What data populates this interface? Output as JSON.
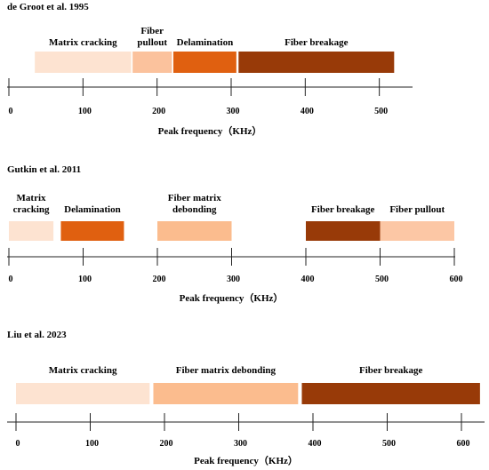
{
  "chart_data": [
    {
      "type": "bar",
      "title": "de Groot et al.  1995",
      "xlabel": "Peak frequency（KHz）",
      "ticks": [
        0,
        100,
        200,
        300,
        400,
        500
      ],
      "xlim": [
        0,
        550
      ],
      "bands": [
        {
          "name": "Matrix cracking",
          "label_lines": [
            "Matrix cracking"
          ],
          "start": 35,
          "end": 165,
          "color": "#fde3d1"
        },
        {
          "name": "Fiber pullout",
          "label_lines": [
            "Fiber",
            "pullout"
          ],
          "start": 167,
          "end": 220,
          "color": "#fbc29d"
        },
        {
          "name": "Delamination",
          "label_lines": [
            "Delamination"
          ],
          "start": 222,
          "end": 307,
          "color": "#e06010"
        },
        {
          "name": "Fiber breakage",
          "label_lines": [
            "Fiber breakage"
          ],
          "start": 310,
          "end": 520,
          "color": "#983a08"
        }
      ]
    },
    {
      "type": "bar",
      "title": "Gutkin et al.  2011",
      "xlabel": "Peak frequency（KHz）",
      "ticks": [
        0,
        100,
        200,
        300,
        400,
        500,
        600
      ],
      "xlim": [
        0,
        600
      ],
      "bands": [
        {
          "name": "Matrix cracking",
          "label_lines": [
            "Matrix",
            "cracking"
          ],
          "start": 0,
          "end": 60,
          "color": "#fde3d1"
        },
        {
          "name": "Delamination",
          "label_lines": [
            "Delamination"
          ],
          "start": 70,
          "end": 155,
          "color": "#e06010"
        },
        {
          "name": "Fiber matrix debonding",
          "label_lines": [
            "Fiber matrix",
            "debonding"
          ],
          "start": 200,
          "end": 300,
          "color": "#fbbc8e"
        },
        {
          "name": "Fiber breakage",
          "label_lines": [
            "Fiber breakage"
          ],
          "start": 400,
          "end": 500,
          "color": "#983a08"
        },
        {
          "name": "Fiber pullout",
          "label_lines": [
            "Fiber pullout"
          ],
          "start": 500,
          "end": 600,
          "color": "#fcc7a5"
        }
      ]
    },
    {
      "type": "bar",
      "title": "Liu et al.  2023",
      "xlabel": "Peak frequency（KHz）",
      "ticks": [
        0,
        100,
        200,
        300,
        400,
        500,
        600
      ],
      "xlim": [
        0,
        630
      ],
      "bands": [
        {
          "name": "Matrix cracking",
          "label_lines": [
            "Matrix cracking"
          ],
          "start": 0,
          "end": 180,
          "color": "#fde3d1"
        },
        {
          "name": "Fiber matrix debonding",
          "label_lines": [
            "Fiber matrix debonding"
          ],
          "start": 185,
          "end": 380,
          "color": "#fbbc8e"
        },
        {
          "name": "Fiber breakage",
          "label_lines": [
            "Fiber breakage"
          ],
          "start": 385,
          "end": 625,
          "color": "#983a08"
        }
      ]
    }
  ]
}
